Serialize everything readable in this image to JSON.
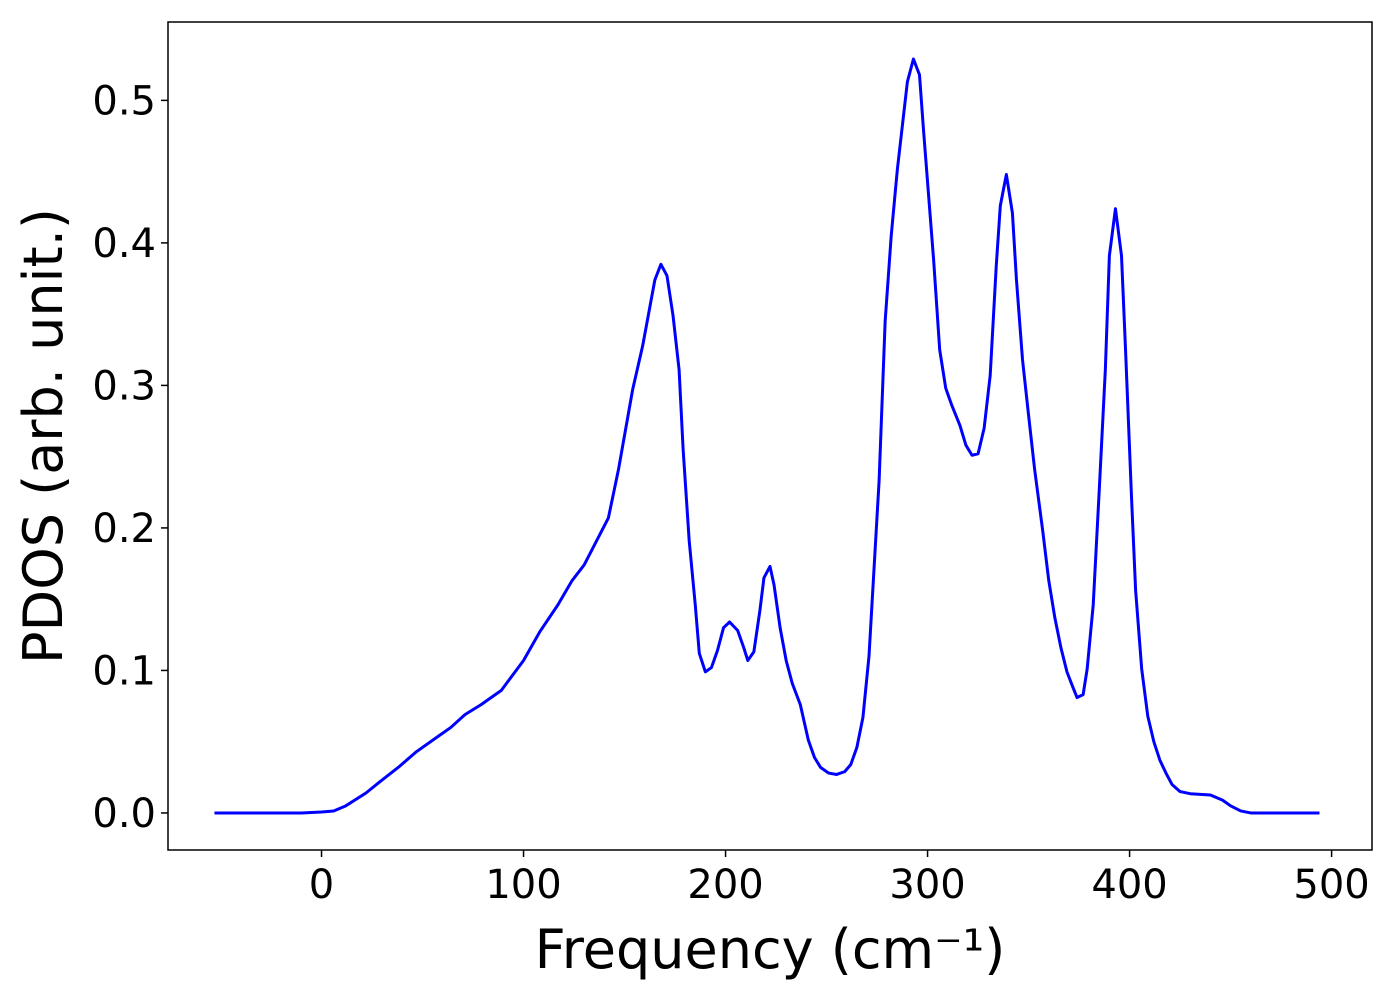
{
  "chart_data": {
    "type": "line",
    "xlabel": "Frequency (cm⁻¹)",
    "ylabel": "PDOS (arb. unit.)",
    "xlim": [
      -76,
      520
    ],
    "ylim": [
      -0.026,
      0.555
    ],
    "xticks": [
      0,
      100,
      200,
      300,
      400,
      500
    ],
    "yticks": [
      {
        "value": 0,
        "label": "0.0"
      },
      0.1,
      0.2,
      0.3,
      0.4,
      0.5
    ],
    "series": [
      {
        "color": "#0000ff",
        "x": [
          -53,
          -40,
          -20,
          -10,
          0,
          6,
          12,
          22,
          29,
          38,
          47,
          57,
          64,
          71,
          79,
          89,
          100,
          108,
          117,
          124,
          130,
          142,
          147,
          154,
          159,
          165,
          168,
          171,
          174,
          177,
          179,
          182,
          185,
          187,
          190,
          193,
          196,
          199,
          202,
          206,
          209,
          211,
          214,
          217,
          219,
          222,
          224,
          227,
          230,
          233,
          237,
          241,
          244,
          247,
          251,
          255,
          259,
          262,
          265,
          268,
          271,
          276,
          279,
          282,
          285,
          290,
          293,
          296,
          298,
          303,
          306,
          309,
          312,
          316,
          319,
          322,
          325,
          328,
          331,
          334,
          336,
          339,
          342,
          344,
          347,
          350,
          353,
          357,
          360,
          363,
          366,
          369,
          372,
          374,
          377,
          379,
          382,
          385,
          388,
          390,
          393,
          396,
          398,
          401,
          403,
          406,
          409,
          412,
          415,
          418,
          421,
          425,
          430,
          440,
          446,
          450,
          455,
          460,
          470,
          480,
          494
        ],
        "values": [
          0,
          0,
          0,
          0,
          0.0007,
          0.0014,
          0.005,
          0.014,
          0.022,
          0.032,
          0.043,
          0.053,
          0.06,
          0.069,
          0.076,
          0.086,
          0.107,
          0.127,
          0.146,
          0.163,
          0.174,
          0.207,
          0.241,
          0.297,
          0.328,
          0.374,
          0.385,
          0.377,
          0.349,
          0.311,
          0.255,
          0.191,
          0.146,
          0.112,
          0.099,
          0.102,
          0.114,
          0.13,
          0.134,
          0.128,
          0.116,
          0.107,
          0.113,
          0.142,
          0.165,
          0.173,
          0.16,
          0.13,
          0.107,
          0.091,
          0.076,
          0.051,
          0.039,
          0.032,
          0.028,
          0.027,
          0.029,
          0.034,
          0.046,
          0.067,
          0.11,
          0.233,
          0.345,
          0.405,
          0.451,
          0.513,
          0.529,
          0.518,
          0.479,
          0.388,
          0.325,
          0.298,
          0.286,
          0.272,
          0.258,
          0.251,
          0.252,
          0.27,
          0.307,
          0.384,
          0.426,
          0.448,
          0.421,
          0.374,
          0.318,
          0.279,
          0.241,
          0.198,
          0.163,
          0.137,
          0.116,
          0.099,
          0.088,
          0.081,
          0.083,
          0.101,
          0.146,
          0.227,
          0.311,
          0.391,
          0.424,
          0.391,
          0.325,
          0.22,
          0.156,
          0.101,
          0.068,
          0.05,
          0.037,
          0.028,
          0.02,
          0.015,
          0.0135,
          0.0126,
          0.009,
          0.005,
          0.0014,
          0,
          0,
          0,
          0
        ]
      }
    ]
  }
}
